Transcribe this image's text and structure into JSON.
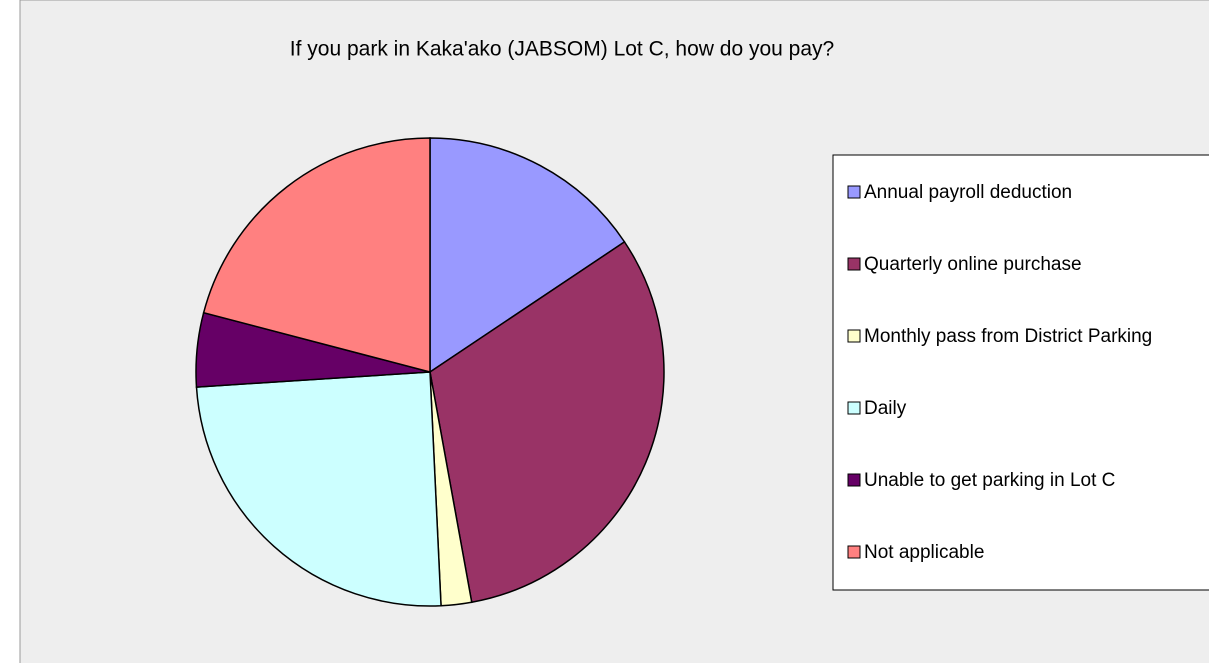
{
  "chart_data": {
    "type": "pie",
    "title": "If you park in Kaka'ako (JABSOM) Lot C, how do you pay?",
    "categories": [
      "Annual payroll deduction",
      "Quarterly online purchase",
      "Monthly pass from District Parking",
      "Daily",
      "Unable to get parking in Lot C",
      "Not applicable"
    ],
    "values": [
      15.6,
      31.5,
      2.1,
      24.7,
      5.1,
      20.9
    ],
    "colors": [
      "#9999ff",
      "#993366",
      "#ffffcc",
      "#ccffff",
      "#660066",
      "#ff8080"
    ],
    "legend": "right"
  }
}
